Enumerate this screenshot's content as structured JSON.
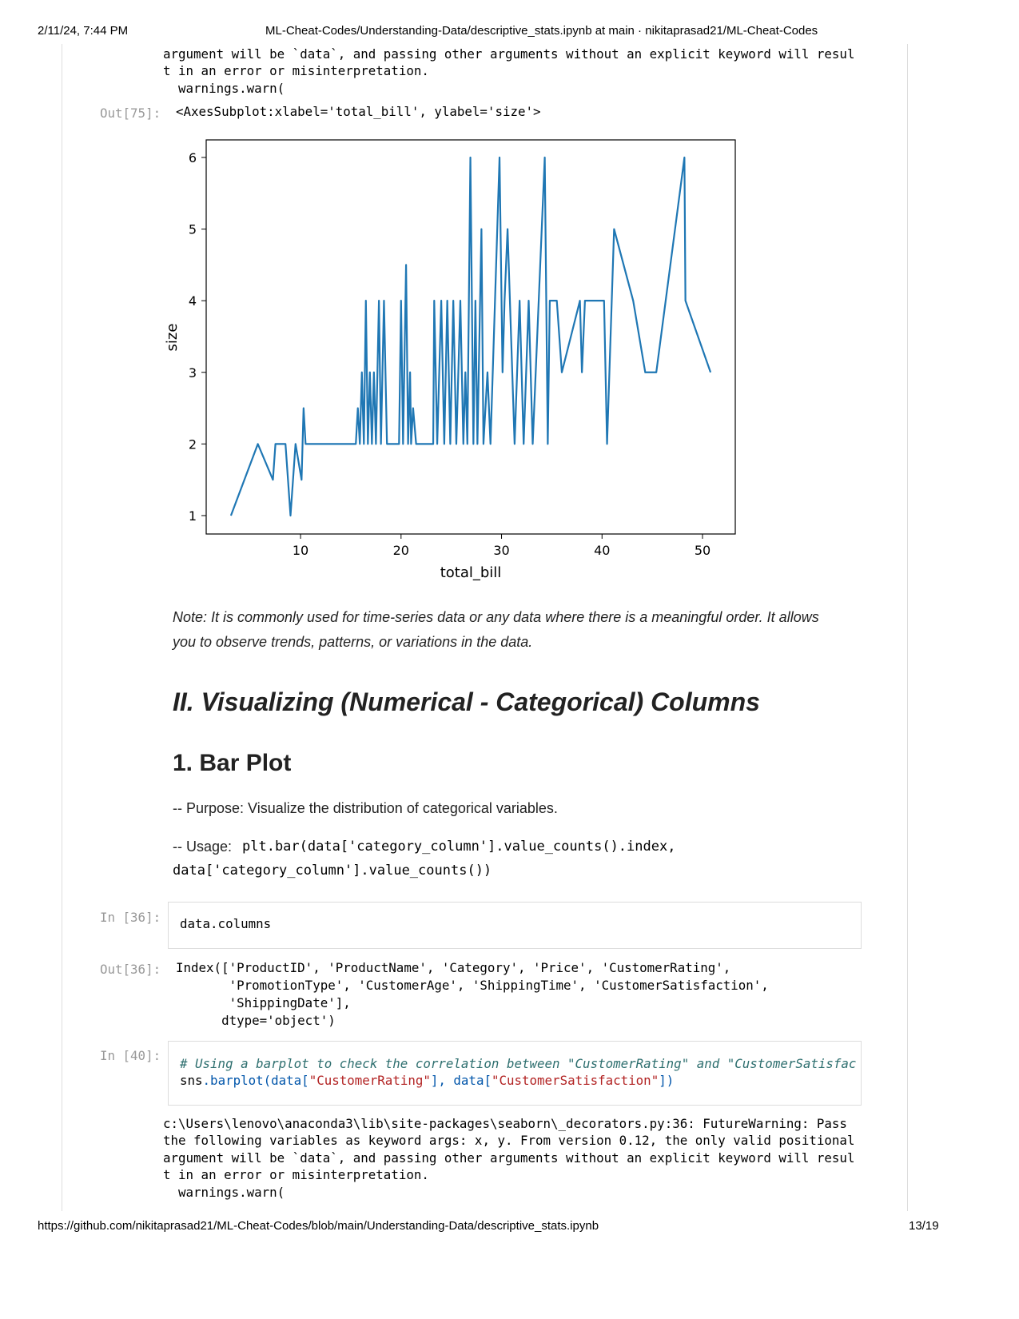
{
  "header": {
    "datetime": "2/11/24, 7:44 PM",
    "title": "ML-Cheat-Codes/Understanding-Data/descriptive_stats.ipynb at main · nikitaprasad21/ML-Cheat-Codes"
  },
  "footer": {
    "url": "https://github.com/nikitaprasad21/ML-Cheat-Codes/blob/main/Understanding-Data/descriptive_stats.ipynb",
    "page": "13/19"
  },
  "warning_top": [
    "argument will be `data`, and passing other arguments without an explicit keyword will resul",
    "t in an error or misinterpretation.",
    "  warnings.warn("
  ],
  "out75": {
    "prompt": "Out[75]:",
    "text": "<AxesSubplot:xlabel='total_bill', ylabel='size'>"
  },
  "chart_data": {
    "type": "line",
    "color": "#1f77b4",
    "x_label": "total_bill",
    "y_label": "size",
    "x": [
      3.07,
      5.75,
      7.25,
      7.5,
      8.5,
      9.0,
      9.5,
      10.1,
      10.3,
      10.5,
      15.5,
      15.7,
      15.9,
      16.1,
      16.3,
      16.5,
      16.7,
      16.9,
      17.1,
      17.3,
      17.5,
      17.8,
      18.0,
      18.3,
      18.6,
      19.8,
      20.0,
      20.2,
      20.5,
      20.7,
      20.9,
      21.0,
      21.2,
      21.5,
      23.2,
      23.3,
      23.6,
      24.0,
      24.3,
      24.6,
      24.9,
      25.2,
      25.5,
      25.9,
      26.2,
      26.4,
      26.6,
      26.9,
      27.2,
      27.4,
      27.6,
      28.0,
      28.2,
      28.6,
      28.9,
      29.8,
      30.1,
      30.3,
      30.6,
      31.3,
      31.8,
      32.2,
      32.7,
      33.1,
      34.3,
      34.6,
      34.8,
      35.5,
      36.0,
      37.8,
      38.0,
      38.3,
      40.2,
      40.5,
      41.2,
      43.1,
      44.3,
      45.4,
      48.2,
      48.3,
      50.8
    ],
    "y": [
      1,
      2,
      1.5,
      2,
      2,
      1,
      2,
      1.5,
      2.5,
      2,
      2,
      2.5,
      2,
      3,
      2,
      4,
      2,
      3,
      2,
      3,
      2,
      4,
      2,
      4,
      2,
      2,
      4,
      2,
      4.5,
      2,
      3,
      2,
      2.5,
      2,
      2,
      4,
      2,
      4,
      2,
      4,
      2,
      4,
      2,
      4,
      2,
      3,
      2,
      6,
      2,
      4,
      2,
      5,
      2,
      3,
      2,
      6,
      3,
      4,
      5,
      2,
      4,
      2,
      4,
      2,
      6,
      2,
      4,
      4,
      3,
      4,
      3,
      4,
      4,
      2,
      5,
      4,
      3,
      3,
      6,
      4,
      3
    ],
    "xlim": [
      0.61,
      53.26
    ],
    "ylim": [
      0.743,
      6.245
    ],
    "xticks": [
      10,
      20,
      30,
      40,
      50
    ],
    "yticks": [
      1,
      2,
      3,
      4,
      5,
      6
    ]
  },
  "note": [
    "Note: It is commonly used for time-series data or any data where there is a meaningful order. It allows",
    "you to observe trends, patterns, or variations in the data."
  ],
  "heading2": "II. Visualizing (Numerical - Categorical) Columns",
  "heading3": "1. Bar Plot",
  "purpose": "-- Purpose: Visualize the distribution of categorical variables.",
  "usage": {
    "label": "-- Usage:",
    "code": [
      "plt.bar(data['category_column'].value_counts().index,",
      "data['category_column'].value_counts())"
    ]
  },
  "cell36": {
    "prompt": "In [36]:",
    "code": "data.columns",
    "out_prompt": "Out[36]:",
    "output": [
      "Index(['ProductID', 'ProductName', 'Category', 'Price', 'CustomerRating',",
      "       'PromotionType', 'CustomerAge', 'ShippingTime', 'CustomerSatisfaction',",
      "       'ShippingDate'],",
      "      dtype='object')"
    ]
  },
  "cell40": {
    "prompt": "In [40]:",
    "comment": "# Using a barplot to check the correlation between \"CustomerRating\" and \"CustomerSatisfac",
    "code": [
      "sns",
      ".barplot(data[",
      "\"CustomerRating\"",
      "], data[",
      "\"CustomerSatisfaction\"",
      "])"
    ]
  },
  "warning_bottom": [
    "c:\\Users\\lenovo\\anaconda3\\lib\\site-packages\\seaborn\\_decorators.py:36: FutureWarning: Pass",
    "the following variables as keyword args: x, y. From version 0.12, the only valid positional",
    "argument will be `data`, and passing other arguments without an explicit keyword will resul",
    "t in an error or misinterpretation.",
    "  warnings.warn("
  ]
}
